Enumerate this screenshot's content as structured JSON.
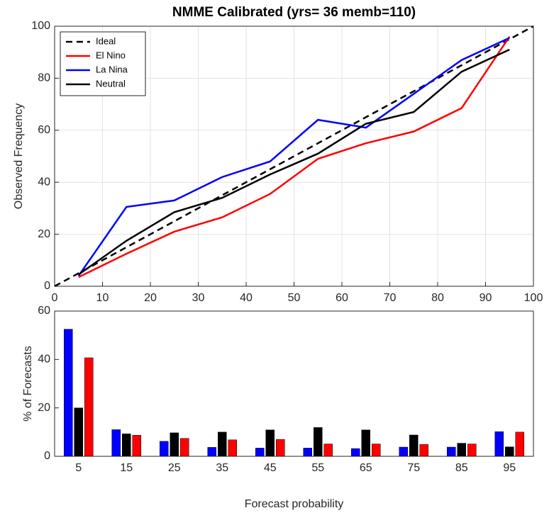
{
  "chart_data": [
    {
      "type": "line",
      "title": "NMME Calibrated (yrs= 36 memb=110)",
      "ylabel": "Observed Frequency",
      "xlim": [
        0,
        100
      ],
      "ylim": [
        0,
        100
      ],
      "xticks": [
        0,
        10,
        20,
        30,
        40,
        50,
        60,
        70,
        80,
        90,
        100
      ],
      "yticks": [
        0,
        20,
        40,
        60,
        80,
        100
      ],
      "grid": true,
      "legend": "upper left",
      "series": [
        {
          "name": "Ideal",
          "color": "#000000",
          "dashed": true,
          "x": [
            0,
            100
          ],
          "values": [
            0,
            100
          ]
        },
        {
          "name": "El Nino",
          "color": "#ff0000",
          "x": [
            5,
            15,
            25,
            35,
            45,
            55,
            65,
            75,
            85,
            95
          ],
          "values": [
            3.5,
            12.5,
            21,
            26.5,
            35.5,
            49,
            55,
            59.5,
            68.5,
            96
          ]
        },
        {
          "name": "La Nina",
          "color": "#0000ff",
          "x": [
            5,
            15,
            25,
            35,
            45,
            55,
            65,
            75,
            85,
            95
          ],
          "values": [
            4,
            30.5,
            33,
            42,
            48,
            64,
            61,
            74,
            87,
            95.5
          ]
        },
        {
          "name": "Neutral",
          "color": "#000000",
          "x": [
            5,
            15,
            25,
            35,
            45,
            55,
            65,
            75,
            85,
            95
          ],
          "values": [
            4.5,
            17.5,
            28.5,
            34,
            43,
            51,
            62.5,
            67,
            82.5,
            91
          ]
        }
      ]
    },
    {
      "type": "bar",
      "xlabel": "Forecast probability",
      "ylabel": "% of Forecasts",
      "categories": [
        "5",
        "15",
        "25",
        "35",
        "45",
        "55",
        "65",
        "75",
        "85",
        "95"
      ],
      "ylim": [
        0,
        60
      ],
      "yticks": [
        0,
        20,
        40,
        60
      ],
      "grid": false,
      "series": [
        {
          "color": "#0000ff",
          "values": [
            52.5,
            11,
            6.2,
            3.7,
            3.4,
            3.4,
            3.2,
            3.8,
            3.8,
            10.2
          ]
        },
        {
          "color": "#000000",
          "values": [
            20,
            9.3,
            9.7,
            10,
            10.9,
            11.9,
            10.9,
            8.8,
            5.4,
            3.9
          ]
        },
        {
          "color": "#ff0000",
          "values": [
            40.7,
            8.7,
            7.4,
            6.8,
            7,
            5.1,
            5.1,
            4.9,
            5.1,
            10
          ]
        }
      ]
    }
  ]
}
